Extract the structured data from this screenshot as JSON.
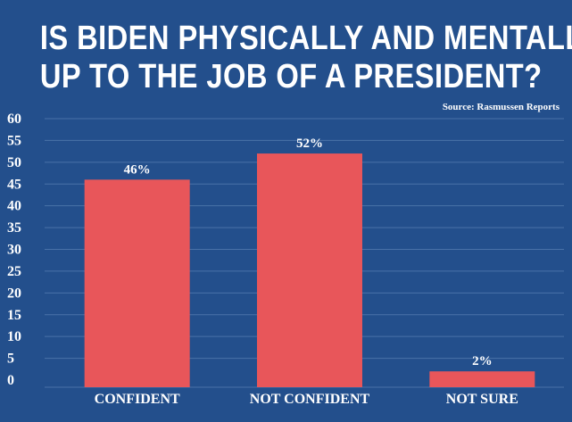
{
  "colors": {
    "background": "#234f8c",
    "bar": "#e8565a",
    "gridline": "#4a72a8",
    "text": "#ffffff"
  },
  "title_lines": [
    "IS BIDEN PHYSICALLY AND MENTALLY",
    "UP TO THE JOB OF A PRESIDENT?"
  ],
  "source": "Source: Rasmussen Reports",
  "chart_data": {
    "type": "bar",
    "title": "IS BIDEN PHYSICALLY AND MENTALLY UP TO THE JOB OF A PRESIDENT?",
    "categories": [
      "CONFIDENT",
      "NOT CONFIDENT",
      "NOT SURE"
    ],
    "values": [
      46,
      52,
      2
    ],
    "value_labels": [
      "46%",
      "52%",
      "2%"
    ],
    "ylim": [
      0,
      60
    ],
    "yticks": [
      0,
      5,
      10,
      15,
      20,
      25,
      30,
      35,
      40,
      45,
      50,
      55,
      60
    ],
    "xlabel": "",
    "ylabel": "",
    "grid": true,
    "legend": "none"
  }
}
